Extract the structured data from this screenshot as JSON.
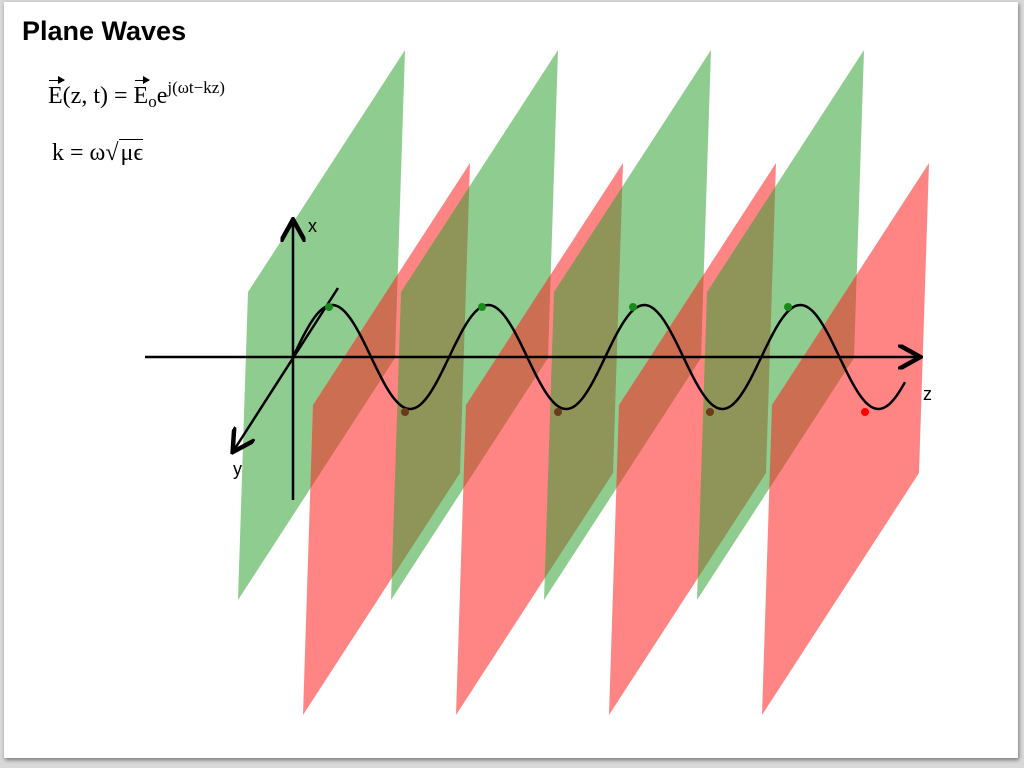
{
  "title": "Plane Waves",
  "equations": [
    {
      "lhs_symbol": "E",
      "lhs_args": "(z, t) = ",
      "rhs_symbol": "E",
      "rhs_subscript": "o",
      "rhs_base": "e",
      "rhs_exponent": "j(ωt−kz)"
    },
    {
      "lhs": "k = ω",
      "radicand": "μϵ"
    }
  ],
  "axes": {
    "x": "x",
    "y": "y",
    "z": "z"
  }
}
